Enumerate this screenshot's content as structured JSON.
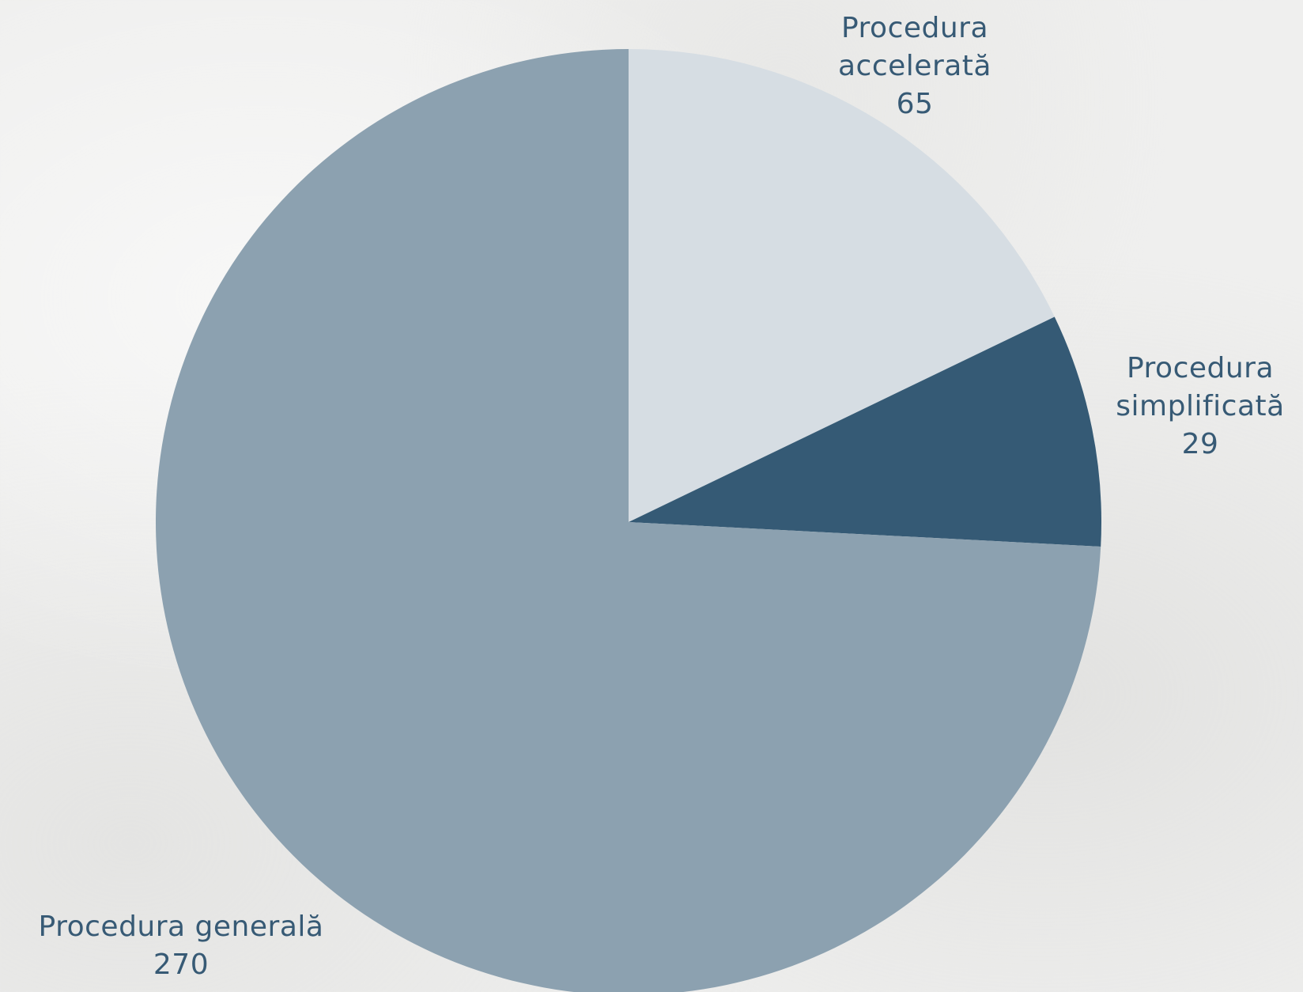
{
  "chart_data": {
    "type": "pie",
    "title": "",
    "start_angle": "12 o'clock",
    "direction": "clockwise",
    "slices": [
      {
        "label_line1": "Procedura",
        "label_line2": "accelerată",
        "value": 65,
        "value_text": "65",
        "color": "#d6dde3"
      },
      {
        "label_line1": "Procedura",
        "label_line2": "simplificată",
        "value": 29,
        "value_text": "29",
        "color": "#355a75"
      },
      {
        "label_line1": "Procedura generală",
        "label_line2": "",
        "value": 270,
        "value_text": "270",
        "color": "#8ca1b0"
      }
    ],
    "label_color": "#375a75"
  }
}
